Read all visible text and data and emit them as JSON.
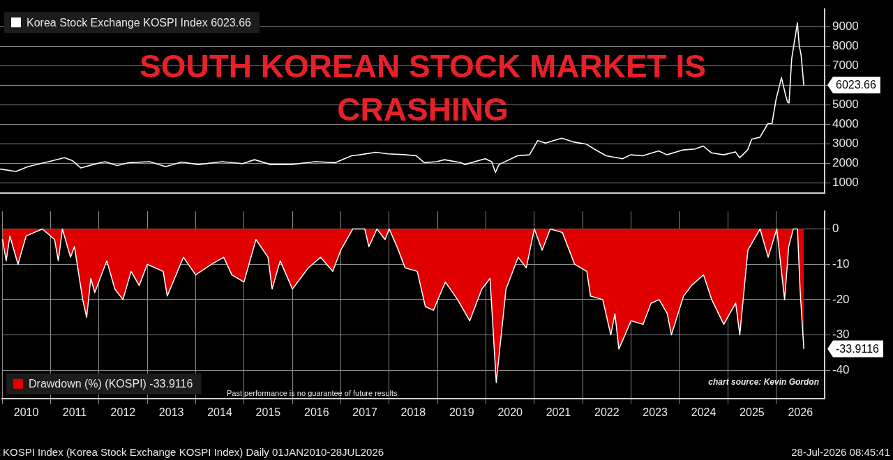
{
  "chart_data": [
    {
      "type": "line",
      "title": "SOUTH KOREAN STOCK MARKET IS CRASHING",
      "legend": "top left",
      "grid": "y",
      "tick_labels": "y",
      "xlim": [
        "2010-01-01",
        "2027-01-01"
      ],
      "ylim": [
        500,
        9900
      ],
      "yticks": [
        1000,
        2000,
        3000,
        4000,
        5000,
        {
          "value": 6000,
          "label": null
        },
        7000,
        8000,
        9000
      ],
      "annotations": [
        {
          "text": "6023.66",
          "x": "2026-07-28",
          "y": 6023.66
        }
      ],
      "series": [
        {
          "name": "Korea Stock Exchange KOSPI Index 6023.66",
          "color": "#ffffff",
          "x": [
            "2010-01-04",
            "2010-05",
            "2010-08",
            "2011-02",
            "2011-05",
            "2011-07",
            "2011-09",
            "2011-12",
            "2012-03",
            "2012-06",
            "2012-09",
            "2013-02",
            "2013-06",
            "2013-10",
            "2014-02",
            "2014-08",
            "2015-01",
            "2015-04",
            "2015-08",
            "2016-01",
            "2016-07",
            "2016-12",
            "2017-04",
            "2017-06",
            "2017-10",
            "2018-01",
            "2018-05",
            "2018-08",
            "2018-10",
            "2019-01",
            "2019-03",
            "2019-07",
            "2019-08",
            "2020-01",
            "2020-02-20",
            "2020-03-19",
            "2020-04-15",
            "2020-09",
            "2020-12",
            "2021-02",
            "2021-04",
            "2021-08",
            "2021-11",
            "2022-02",
            "2022-04",
            "2022-07",
            "2022-11",
            "2023-01",
            "2023-04",
            "2023-08",
            "2023-10",
            "2024-02",
            "2024-05",
            "2024-07",
            "2024-09",
            "2024-12",
            "2025-03",
            "2025-04",
            "2025-06",
            "2025-07",
            "2025-09",
            "2025-11",
            "2025-12",
            "2026-01",
            "2026-02-10",
            "2026-03-15",
            "2026-03-28",
            "2026-04-08",
            "2026-04-28",
            "2026-06-10",
            "2026-06-24",
            "2026-07-08",
            "2026-07-28"
          ],
          "values": [
            1720,
            1600,
            1850,
            2150,
            2300,
            2150,
            1780,
            1950,
            2100,
            1900,
            2050,
            2100,
            1850,
            2080,
            1950,
            2100,
            2000,
            2200,
            1950,
            1950,
            2100,
            2050,
            2400,
            2450,
            2580,
            2500,
            2460,
            2400,
            2050,
            2100,
            2200,
            2050,
            1950,
            2250,
            2100,
            1550,
            1950,
            2400,
            2450,
            3180,
            3050,
            3300,
            3100,
            3000,
            2750,
            2400,
            2250,
            2450,
            2400,
            2650,
            2450,
            2700,
            2750,
            2900,
            2550,
            2450,
            2600,
            2300,
            2700,
            3250,
            3350,
            4050,
            4050,
            5300,
            6400,
            5450,
            5150,
            5100,
            7350,
            9200,
            8050,
            7550,
            6023.66
          ]
        }
      ]
    },
    {
      "type": "area",
      "legend": "bottom left",
      "grid": true,
      "xlim": [
        "2010-01-01",
        "2027-01-01"
      ],
      "xticks": [
        {
          "value": "2010-01-01",
          "label": null
        },
        {
          "value": "2010-07-02",
          "label": "2010"
        },
        {
          "value": "2011-01-01",
          "label": null
        },
        {
          "value": "2011-07-02",
          "label": "2011"
        },
        {
          "value": "2012-01-01",
          "label": null
        },
        {
          "value": "2012-07-02",
          "label": "2012"
        },
        {
          "value": "2013-01-01",
          "label": null
        },
        {
          "value": "2013-07-02",
          "label": "2013"
        },
        {
          "value": "2014-01-01",
          "label": null
        },
        {
          "value": "2014-07-02",
          "label": "2014"
        },
        {
          "value": "2015-01-01",
          "label": null
        },
        {
          "value": "2015-07-02",
          "label": "2015"
        },
        {
          "value": "2016-01-01",
          "label": null
        },
        {
          "value": "2016-07-02",
          "label": "2016"
        },
        {
          "value": "2017-01-01",
          "label": null
        },
        {
          "value": "2017-07-02",
          "label": "2017"
        },
        {
          "value": "2018-01-01",
          "label": null
        },
        {
          "value": "2018-07-02",
          "label": "2018"
        },
        {
          "value": "2019-01-01",
          "label": null
        },
        {
          "value": "2019-07-02",
          "label": "2019"
        },
        {
          "value": "2020-01-01",
          "label": null
        },
        {
          "value": "2020-07-02",
          "label": "2020"
        },
        {
          "value": "2021-01-01",
          "label": null
        },
        {
          "value": "2021-07-02",
          "label": "2021"
        },
        {
          "value": "2022-01-01",
          "label": null
        },
        {
          "value": "2022-07-02",
          "label": "2022"
        },
        {
          "value": "2023-01-01",
          "label": null
        },
        {
          "value": "2023-07-02",
          "label": "2023"
        },
        {
          "value": "2024-01-01",
          "label": null
        },
        {
          "value": "2024-07-02",
          "label": "2024"
        },
        {
          "value": "2025-01-01",
          "label": null
        },
        {
          "value": "2025-07-02",
          "label": "2025"
        },
        {
          "value": "2026-01-01",
          "label": null
        },
        {
          "value": "2026-07-02",
          "label": "2026"
        }
      ],
      "ylim": [
        -48,
        5
      ],
      "yticks": [
        -40,
        -30,
        -20,
        -10,
        0
      ],
      "annotations": [
        {
          "text": "-33.9116",
          "x": "2026-07-28",
          "y": -33.9116
        },
        "Past performance is no guarantee of future results",
        "chart source: Kevin Gordon",
        "KOSPI Index (Korea Stock Exchange KOSPI Index) Daily 01JAN2010-28JUL2026",
        "28-Jul-2026 08:45:41"
      ],
      "series": [
        {
          "name": "Drawdown (%) (KOSPI) -33.9116",
          "color": "#e00000",
          "x": [
            "2010-01-04",
            "2010-02",
            "2010-03",
            "2010-05",
            "2010-07",
            "2010-11",
            "2011-02",
            "2011-03",
            "2011-04",
            "2011-06",
            "2011-07",
            "2011-09",
            "2011-10",
            "2011-11",
            "2011-12",
            "2012-03",
            "2012-05",
            "2012-07",
            "2012-09",
            "2012-11",
            "2013-01",
            "2013-05",
            "2013-06",
            "2013-10",
            "2014-01",
            "2014-05",
            "2014-08",
            "2014-10",
            "2015-01",
            "2015-04",
            "2015-07",
            "2015-08",
            "2015-10",
            "2016-01",
            "2016-05",
            "2016-08",
            "2016-11",
            "2017-01",
            "2017-04",
            "2017-07",
            "2017-08",
            "2017-10",
            "2017-12",
            "2018-01",
            "2018-03",
            "2018-05",
            "2018-08",
            "2018-10",
            "2018-12",
            "2019-03",
            "2019-06",
            "2019-09",
            "2019-12",
            "2020-02",
            "2020-03-19",
            "2020-06",
            "2020-09",
            "2020-11",
            "2021-01",
            "2021-03",
            "2021-05",
            "2021-08",
            "2021-11",
            "2022-02",
            "2022-03",
            "2022-06",
            "2022-08",
            "2022-09",
            "2022-10",
            "2023-01",
            "2023-04",
            "2023-06",
            "2023-08",
            "2023-10",
            "2023-11",
            "2024-02",
            "2024-04",
            "2024-07",
            "2024-09",
            "2024-12",
            "2025-03",
            "2025-04",
            "2025-06",
            "2025-09",
            "2025-11",
            "2026-01-05",
            "2026-03-05",
            "2026-04-05",
            "2026-05-10",
            "2026-06-10",
            "2026-07-01",
            "2026-07-28"
          ],
          "values": [
            -3,
            -9,
            -2,
            -10,
            -2,
            0,
            -3,
            -9,
            0,
            -8,
            -5,
            -20,
            -25,
            -14,
            -18,
            -9,
            -17,
            -20,
            -12,
            -16,
            -10,
            -12,
            -19,
            -8,
            -13,
            -10,
            -8,
            -13,
            -15,
            -3,
            -8,
            -17,
            -9,
            -17,
            -11,
            -8,
            -12,
            -6,
            0,
            0,
            -5,
            0,
            -3,
            0,
            -5,
            -11,
            -12,
            -22,
            -23,
            -15,
            -20,
            -26,
            -17,
            -14,
            -43.5,
            -17,
            -8,
            -11,
            0,
            -6,
            0,
            -1,
            -10,
            -12,
            -19,
            -20,
            -30,
            -24,
            -34,
            -26,
            -27,
            -21,
            -20,
            -24,
            -30,
            -19,
            -16,
            -13,
            -20,
            -27,
            -21,
            -30,
            -6,
            0,
            -8,
            0,
            -20,
            -5,
            0,
            0,
            -18,
            -33.9116
          ]
        }
      ]
    }
  ]
}
